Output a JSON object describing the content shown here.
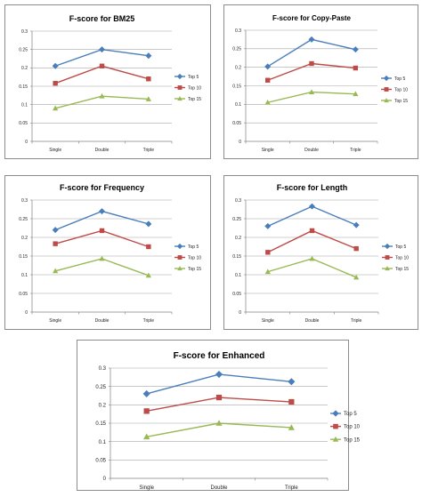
{
  "chart_data": [
    {
      "type": "line",
      "title": "F-score for BM25",
      "categories": [
        "Single",
        "Double",
        "Triple"
      ],
      "ylim": [
        0,
        0.3
      ],
      "yticks": [
        "0",
        "0.05",
        "0.1",
        "0.15",
        "0.2",
        "0.25",
        "0.3"
      ],
      "grid": true,
      "legend": "right",
      "series": [
        {
          "name": "Top 5",
          "values": [
            0.205,
            0.25,
            0.233
          ],
          "color": "#4a7ebb",
          "marker": "diamond"
        },
        {
          "name": "Top 10",
          "values": [
            0.158,
            0.205,
            0.17
          ],
          "color": "#be4b48",
          "marker": "square"
        },
        {
          "name": "Top 15",
          "values": [
            0.09,
            0.123,
            0.115
          ],
          "color": "#98b954",
          "marker": "triangle"
        }
      ]
    },
    {
      "type": "line",
      "title": "F-score for Copy-Paste",
      "categories": [
        "Single",
        "Double",
        "Triple"
      ],
      "ylim": [
        0,
        0.3
      ],
      "yticks": [
        "0",
        "0.05",
        "0.1",
        "0.15",
        "0.2",
        "0.25",
        "0.3"
      ],
      "grid": true,
      "legend": "right",
      "series": [
        {
          "name": "Top 5",
          "values": [
            0.202,
            0.275,
            0.248
          ],
          "color": "#4a7ebb",
          "marker": "diamond"
        },
        {
          "name": "Top 10",
          "values": [
            0.165,
            0.21,
            0.198
          ],
          "color": "#be4b48",
          "marker": "square"
        },
        {
          "name": "Top 15",
          "values": [
            0.105,
            0.133,
            0.128
          ],
          "color": "#98b954",
          "marker": "triangle"
        }
      ]
    },
    {
      "type": "line",
      "title": "F-score for Frequency",
      "categories": [
        "Single",
        "Double",
        "Triple"
      ],
      "ylim": [
        0,
        0.3
      ],
      "yticks": [
        "0",
        "0.05",
        "0.1",
        "0.15",
        "0.2",
        "0.25",
        "0.3"
      ],
      "grid": true,
      "legend": "right",
      "series": [
        {
          "name": "Top 5",
          "values": [
            0.22,
            0.27,
            0.236
          ],
          "color": "#4a7ebb",
          "marker": "diamond"
        },
        {
          "name": "Top 10",
          "values": [
            0.183,
            0.218,
            0.175
          ],
          "color": "#be4b48",
          "marker": "square"
        },
        {
          "name": "Top 15",
          "values": [
            0.11,
            0.143,
            0.098
          ],
          "color": "#98b954",
          "marker": "triangle"
        }
      ]
    },
    {
      "type": "line",
      "title": "F-score for Length",
      "categories": [
        "Single",
        "Double",
        "Triple"
      ],
      "ylim": [
        0,
        0.3
      ],
      "yticks": [
        "0",
        "0.05",
        "0.1",
        "0.15",
        "0.2",
        "0.25",
        "0.3"
      ],
      "grid": true,
      "legend": "right",
      "series": [
        {
          "name": "Top 5",
          "values": [
            0.23,
            0.283,
            0.233
          ],
          "color": "#4a7ebb",
          "marker": "diamond"
        },
        {
          "name": "Top 10",
          "values": [
            0.16,
            0.218,
            0.17
          ],
          "color": "#be4b48",
          "marker": "square"
        },
        {
          "name": "Top 15",
          "values": [
            0.108,
            0.143,
            0.093
          ],
          "color": "#98b954",
          "marker": "triangle"
        }
      ]
    },
    {
      "type": "line",
      "title": "F-score for Enhanced",
      "categories": [
        "Single",
        "Double",
        "Triple"
      ],
      "ylim": [
        0,
        0.3
      ],
      "yticks": [
        "0",
        "0.05",
        "0.1",
        "0.15",
        "0.2",
        "0.25",
        "0.3"
      ],
      "grid": true,
      "legend": "right",
      "series": [
        {
          "name": "Top 5",
          "values": [
            0.23,
            0.283,
            0.263
          ],
          "color": "#4a7ebb",
          "marker": "diamond"
        },
        {
          "name": "Top 10",
          "values": [
            0.183,
            0.22,
            0.208
          ],
          "color": "#be4b48",
          "marker": "square"
        },
        {
          "name": "Top 15",
          "values": [
            0.113,
            0.15,
            0.138
          ],
          "color": "#98b954",
          "marker": "triangle"
        }
      ]
    }
  ]
}
